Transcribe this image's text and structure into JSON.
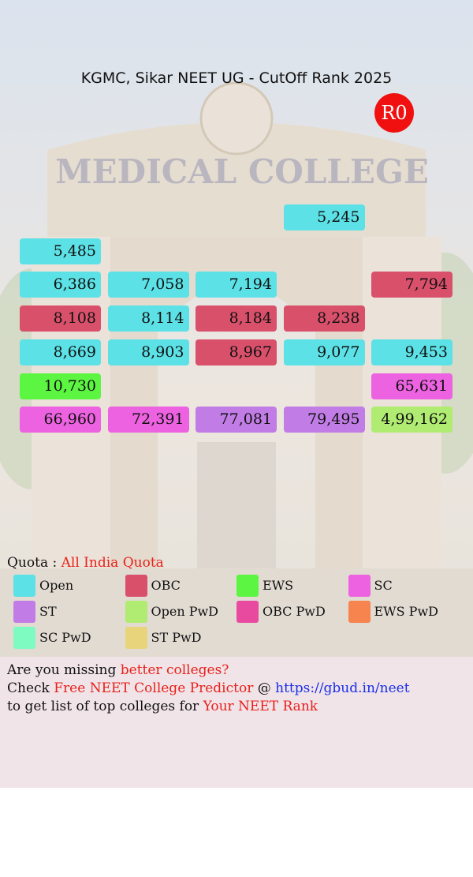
{
  "title": "KGMC, Sikar NEET UG - CutOff Rank 2025",
  "badge": "R0",
  "background_sign": "MEDICAL COLLEGE",
  "rows": [
    [
      null,
      null,
      null,
      {
        "text": "5,245",
        "color": "#5ce1e6"
      },
      null
    ],
    [
      {
        "text": "5,485",
        "color": "#5ce1e6"
      },
      null,
      null,
      null,
      null
    ],
    [
      {
        "text": "6,386",
        "color": "#5ce1e6"
      },
      {
        "text": "7,058",
        "color": "#5ce1e6"
      },
      {
        "text": "7,194",
        "color": "#5ce1e6"
      },
      null,
      {
        "text": "7,794",
        "color": "#d9506b"
      }
    ],
    [
      {
        "text": "8,108",
        "color": "#d9506b"
      },
      {
        "text": "8,114",
        "color": "#5ce1e6"
      },
      {
        "text": "8,184",
        "color": "#d9506b"
      },
      {
        "text": "8,238",
        "color": "#d9506b"
      },
      null
    ],
    [
      {
        "text": "8,669",
        "color": "#5ce1e6"
      },
      {
        "text": "8,903",
        "color": "#5ce1e6"
      },
      {
        "text": "8,967",
        "color": "#d9506b"
      },
      {
        "text": "9,077",
        "color": "#5ce1e6"
      },
      {
        "text": "9,453",
        "color": "#5ce1e6"
      }
    ],
    [
      {
        "text": "10,730",
        "color": "#5cf542"
      },
      null,
      null,
      null,
      {
        "text": "65,631",
        "color": "#ec62e0"
      }
    ],
    [
      {
        "text": "66,960",
        "color": "#ec62e0"
      },
      {
        "text": "72,391",
        "color": "#ec62e0"
      },
      {
        "text": "77,081",
        "color": "#c27ce6"
      },
      {
        "text": "79,495",
        "color": "#c27ce6"
      },
      {
        "text": "4,99,162",
        "color": "#b0eb72"
      }
    ]
  ],
  "quota": {
    "label": "Quota :",
    "value": "All India Quota"
  },
  "legend": [
    {
      "label": "Open",
      "color": "#5ce1e6"
    },
    {
      "label": "OBC",
      "color": "#d9506b"
    },
    {
      "label": "EWS",
      "color": "#5cf542"
    },
    {
      "label": "SC",
      "color": "#ec62e0"
    },
    {
      "label": "ST",
      "color": "#c27ce6"
    },
    {
      "label": "Open PwD",
      "color": "#b0eb72"
    },
    {
      "label": "OBC PwD",
      "color": "#e84aa0"
    },
    {
      "label": "EWS PwD",
      "color": "#f7834f"
    },
    {
      "label": "SC PwD",
      "color": "#7dfbc0"
    },
    {
      "label": "ST PwD",
      "color": "#e8d47a"
    }
  ],
  "footer": [
    [
      {
        "text": "Are you missing "
      },
      {
        "text": "better colleges?",
        "color": "#e8201a"
      }
    ],
    [
      {
        "text": "Check "
      },
      {
        "text": "Free NEET College Predictor",
        "color": "#e8201a"
      },
      {
        "text": " @ "
      },
      {
        "text": "https://gbud.in/neet",
        "color": "#1a2ee8"
      }
    ],
    [
      {
        "text": "to get list of top colleges for "
      },
      {
        "text": "Your NEET Rank",
        "color": "#e8201a"
      }
    ]
  ]
}
